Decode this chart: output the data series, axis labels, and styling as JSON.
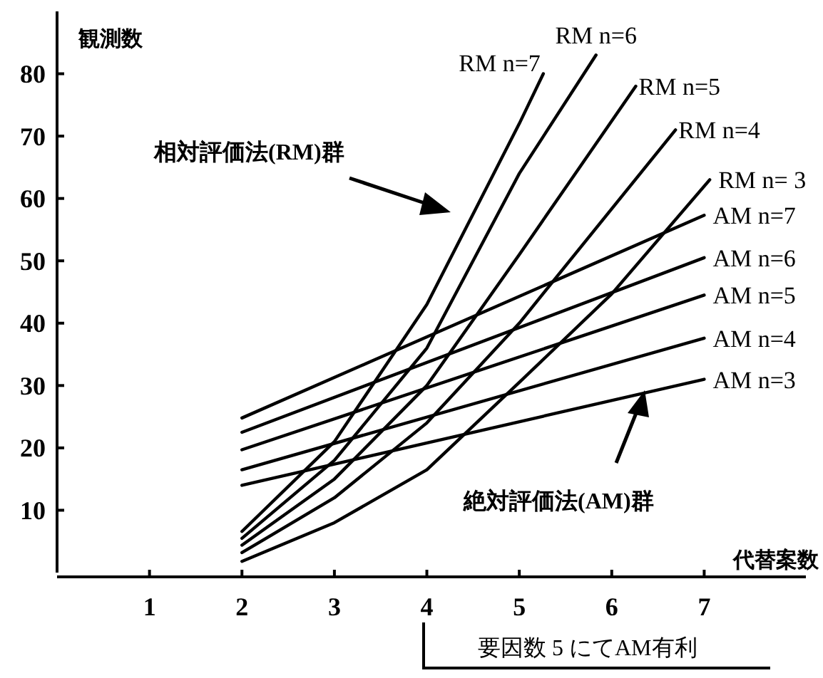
{
  "chart_data": {
    "type": "line",
    "xlabel": "代替案数",
    "ylabel": "観測数",
    "xlim": [
      0,
      8.1
    ],
    "ylim": [
      0,
      90
    ],
    "xticks": [
      1,
      2,
      3,
      4,
      5,
      6,
      7
    ],
    "yticks": [
      10,
      20,
      30,
      40,
      50,
      60,
      70,
      80
    ],
    "grid": false,
    "marker": "none",
    "line_style": "solid",
    "series": [
      {
        "name": "RM n=7",
        "color": "#000000",
        "x": [
          2,
          3,
          4,
          5,
          5.26
        ],
        "values": [
          6.6,
          21,
          43,
          72,
          80
        ]
      },
      {
        "name": "RM n=6",
        "color": "#000000",
        "x": [
          2,
          3,
          4,
          5,
          5.83
        ],
        "values": [
          5.5,
          18,
          36,
          64,
          83
        ]
      },
      {
        "name": "RM n=5",
        "color": "#000000",
        "x": [
          2,
          3,
          4,
          5,
          6.26
        ],
        "values": [
          4.4,
          15,
          30,
          51,
          78
        ]
      },
      {
        "name": "RM n=4",
        "color": "#000000",
        "x": [
          2,
          3,
          4,
          5,
          6.69
        ],
        "values": [
          3.2,
          12,
          24,
          40,
          71
        ]
      },
      {
        "name": "RM n= 3",
        "color": "#000000",
        "x": [
          2,
          3,
          4,
          5,
          6,
          7.06
        ],
        "values": [
          1.8,
          8,
          16.5,
          30.5,
          44.7,
          63
        ]
      },
      {
        "name": "AM n=7",
        "color": "#000000",
        "x": [
          2,
          7
        ],
        "values": [
          24.8,
          57.3
        ]
      },
      {
        "name": "AM n=6",
        "color": "#000000",
        "x": [
          2,
          7
        ],
        "values": [
          22.5,
          50.5
        ]
      },
      {
        "name": "AM n=5",
        "color": "#000000",
        "x": [
          2,
          7
        ],
        "values": [
          19.7,
          44.5
        ]
      },
      {
        "name": "AM n=4",
        "color": "#000000",
        "x": [
          2,
          7
        ],
        "values": [
          16.5,
          37.6
        ]
      },
      {
        "name": "AM n=3",
        "color": "#000000",
        "x": [
          2,
          7
        ],
        "values": [
          14,
          31
        ]
      }
    ],
    "annotations": [
      "相対評価法(RM)群",
      "絶対評価法(AM)群",
      "要因数 5 にてAM有利"
    ]
  }
}
